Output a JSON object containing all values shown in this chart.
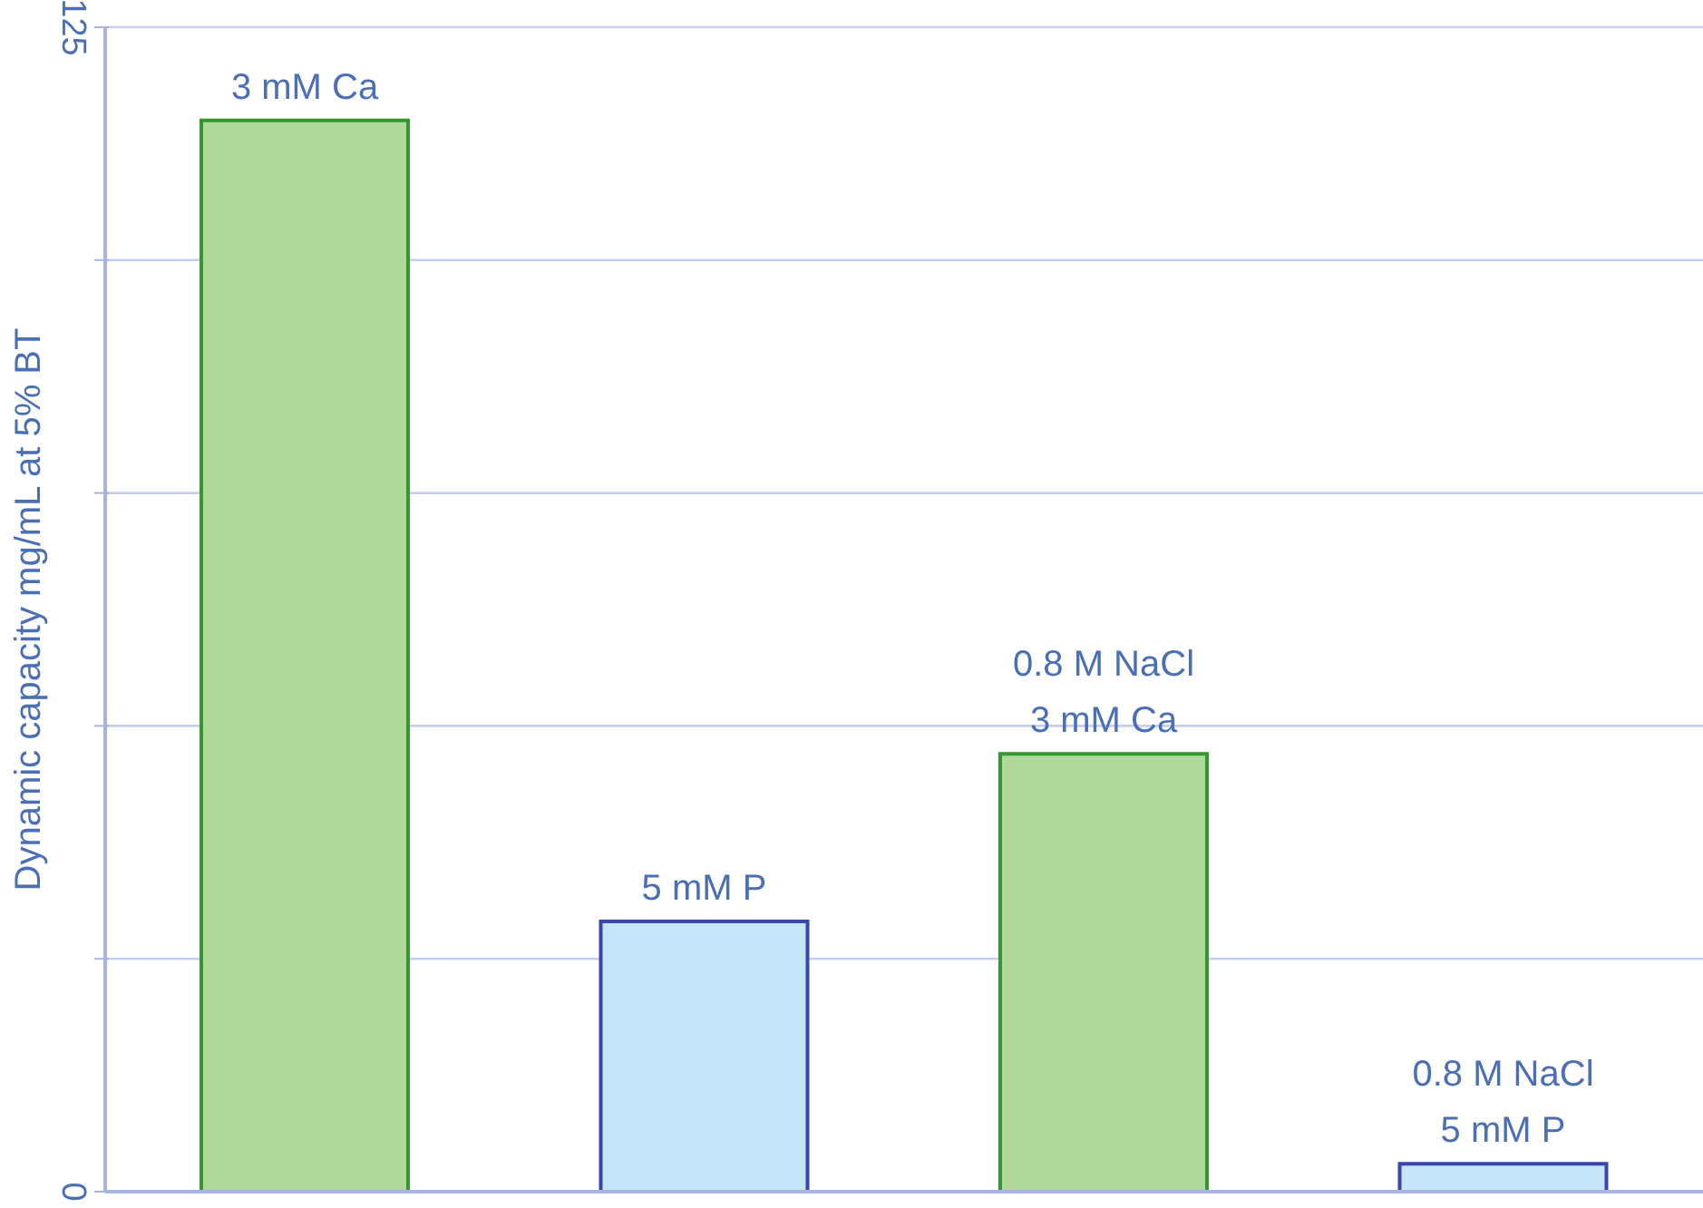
{
  "chart_data": {
    "type": "bar",
    "ylabel": "Dynamic capacity mg/mL at 5% BT",
    "categories": [
      "3 mM Ca",
      "5 mM P",
      "0.8 M NaCl\n3 mM Ca",
      "0.8 M NaCl\n5 mM P"
    ],
    "values": [
      115,
      29,
      47,
      3
    ],
    "colors": [
      "#b0d89b",
      "#c5e6f8",
      "#b0d89b",
      "#c5e6f8"
    ],
    "ylim": [
      0,
      125
    ],
    "yticks": [
      0,
      {
        "value": 25,
        "label": null
      },
      {
        "value": 50,
        "label": null
      },
      {
        "value": 75,
        "label": null
      },
      {
        "value": 100,
        "label": null
      },
      125
    ],
    "grid": "y",
    "tick_labels": "y"
  }
}
